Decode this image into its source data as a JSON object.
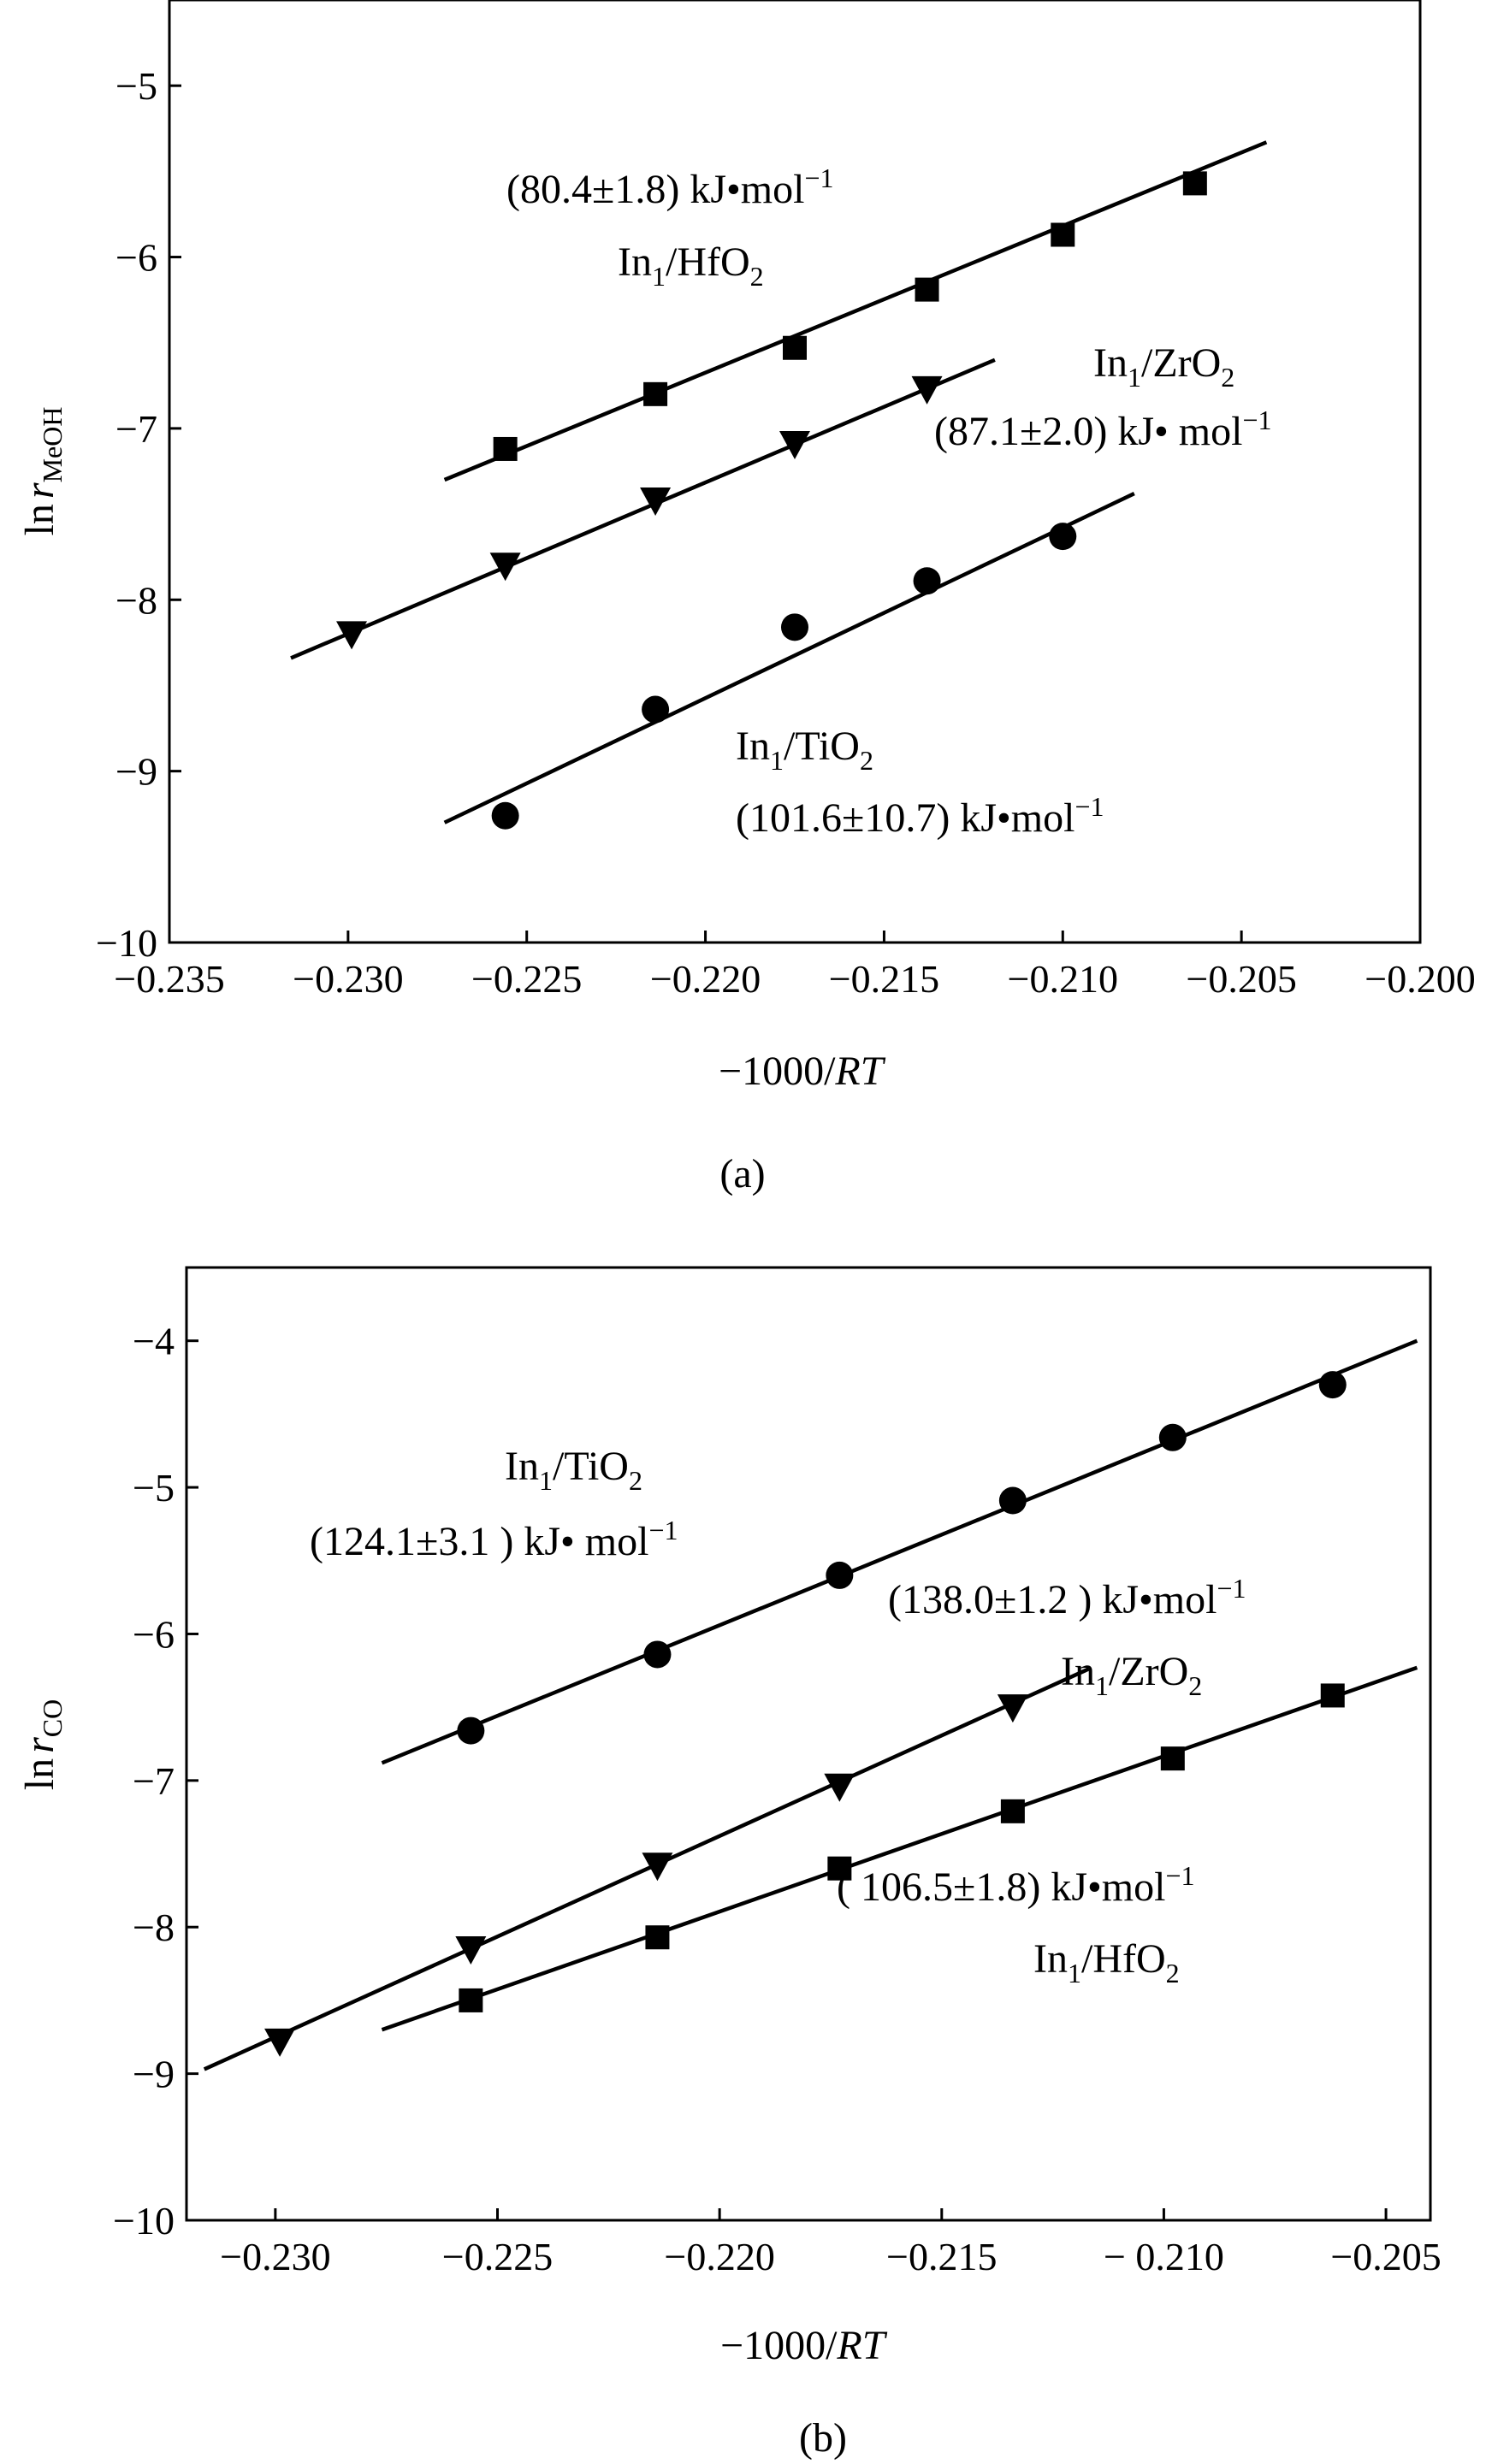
{
  "chart_data": [
    {
      "panel": "(a)",
      "type": "scatter",
      "xlabel": "−1000/RT",
      "ylabel": "ln r",
      "ylabel_subscript": "MeOH",
      "xlim": [
        -0.235,
        -0.2
      ],
      "ylim": [
        -10,
        -4.5
      ],
      "xticks": [
        -0.235,
        -0.23,
        -0.225,
        -0.22,
        -0.215,
        -0.21,
        -0.205,
        -0.2
      ],
      "xtick_labels": [
        "−0.235",
        "−0.230",
        "−0.225",
        "−0.220",
        "−0.215",
        "−0.210",
        "−0.205",
        "−0.200"
      ],
      "yticks": [
        -10,
        -9,
        -8,
        -7,
        -6,
        -5
      ],
      "ytick_labels": [
        "−10",
        "−9",
        "−8",
        "−7",
        "−6",
        "−5"
      ],
      "grid": false,
      "series": [
        {
          "name": "In1/HfO2",
          "marker": "square",
          "x": [
            -0.2256,
            -0.2214,
            -0.2175,
            -0.2138,
            -0.21,
            -0.2063
          ],
          "y": [
            -7.12,
            -6.8,
            -6.53,
            -6.19,
            -5.87,
            -5.57
          ],
          "fit": {
            "x": [
              -0.2273,
              -0.2043
            ],
            "y": [
              -7.3,
              -5.33
            ]
          },
          "annotation": [
            "In1/HfO2",
            "(80.4±1.8) kJ•mol−1"
          ]
        },
        {
          "name": "In1/ZrO2",
          "marker": "triangle-down",
          "x": [
            -0.2299,
            -0.2256,
            -0.2214,
            -0.2175,
            -0.2138
          ],
          "y": [
            -8.2,
            -7.8,
            -7.42,
            -7.09,
            -6.77
          ],
          "fit": {
            "x": [
              -0.2316,
              -0.2119
            ],
            "y": [
              -8.34,
              -6.6
            ]
          },
          "annotation": [
            "In1/ZrO2",
            "(87.1±2.0) kJ•mol−1"
          ]
        },
        {
          "name": "In1/TiO2",
          "marker": "circle",
          "x": [
            -0.2256,
            -0.2214,
            -0.2175,
            -0.2138,
            -0.21
          ],
          "y": [
            -9.26,
            -8.64,
            -8.16,
            -7.89,
            -7.63
          ],
          "fit": {
            "x": [
              -0.2273,
              -0.208
            ],
            "y": [
              -9.3,
              -7.38
            ]
          },
          "annotation": [
            "In1/TiO2",
            "(101.6±10.7) kJ•mol−1"
          ]
        }
      ],
      "caption": "(a)"
    },
    {
      "panel": "(b)",
      "type": "scatter",
      "xlabel": "−1000/RT",
      "ylabel": "ln r",
      "ylabel_subscript": "CO",
      "xlim": [
        -0.232,
        -0.204
      ],
      "ylim": [
        -10,
        -3.5
      ],
      "xticks": [
        -0.23,
        -0.225,
        -0.22,
        -0.215,
        -0.21,
        -0.205
      ],
      "xtick_labels": [
        "−0.230",
        "−0.225",
        "−0.220",
        "−0.215",
        "− 0.210",
        "−0.205"
      ],
      "yticks": [
        -10,
        -9,
        -8,
        -7,
        -6,
        -5,
        -4
      ],
      "ytick_labels": [
        "−10",
        "−9",
        "−8",
        "−7",
        "−6",
        "−5",
        "−4"
      ],
      "grid": false,
      "series": [
        {
          "name": "In1/TiO2",
          "marker": "circle",
          "x": [
            -0.2256,
            -0.2214,
            -0.2173,
            -0.2134,
            -0.2098,
            -0.2062
          ],
          "y": [
            -6.66,
            -6.14,
            -5.6,
            -5.09,
            -4.66,
            -4.3
          ],
          "fit": {
            "x": [
              -0.2276,
              -0.2043
            ],
            "y": [
              -6.88,
              -4.0
            ]
          },
          "annotation": [
            "In1/TiO2",
            "(124.1±3.1 ) kJ• mol−1"
          ]
        },
        {
          "name": "In1/ZrO2",
          "marker": "triangle-down",
          "x": [
            -0.2299,
            -0.2256,
            -0.2214,
            -0.2173,
            -0.2134
          ],
          "y": [
            -8.78,
            -8.15,
            -7.58,
            -7.04,
            -6.5
          ],
          "fit": {
            "x": [
              -0.2316,
              -0.2117
            ],
            "y": [
              -8.97,
              -6.24
            ]
          },
          "annotation": [
            "In1/ZrO2",
            "(138.0±1.2 ) kJ•mol−1"
          ]
        },
        {
          "name": "In1/HfO2",
          "marker": "square",
          "x": [
            -0.2256,
            -0.2214,
            -0.2173,
            -0.2134,
            -0.2098,
            -0.2062
          ],
          "y": [
            -8.5,
            -8.07,
            -7.6,
            -7.21,
            -6.85,
            -6.42
          ],
          "fit": {
            "x": [
              -0.2276,
              -0.2043
            ],
            "y": [
              -8.7,
              -6.23
            ]
          },
          "annotation": [
            "In1/HfO2",
            "( 106.5±1.8) kJ•mol−1"
          ]
        }
      ],
      "caption": "(b)"
    }
  ],
  "annotations_a": {
    "hf_name_main": "In",
    "hf_name_sub": "1",
    "hf_name_rest": "/HfO",
    "hf_name_sub2": "2",
    "hf_energy": "(80.4±1.8) kJ•mol",
    "hf_energy_sup": "−1",
    "zr_name_main": "In",
    "zr_name_sub": "1",
    "zr_name_rest": "/ZrO",
    "zr_name_sub2": "2",
    "zr_energy": "(87.1±2.0) kJ• mol",
    "zr_energy_sup": "−1",
    "ti_name_main": "In",
    "ti_name_sub": "1",
    "ti_name_rest": "/TiO",
    "ti_name_sub2": "2",
    "ti_energy": "(101.6±10.7) kJ•mol",
    "ti_energy_sup": "−1"
  },
  "annotations_b": {
    "ti_name_main": "In",
    "ti_name_sub": "1",
    "ti_name_rest": "/TiO",
    "ti_name_sub2": "2",
    "ti_energy": "(124.1±3.1 ) kJ• mol",
    "ti_energy_sup": "−1",
    "zr_name_main": "In",
    "zr_name_sub": "1",
    "zr_name_rest": "/ZrO",
    "zr_name_sub2": "2",
    "zr_energy": "(138.0±1.2 ) kJ•mol",
    "zr_energy_sup": "−1",
    "hf_name_main": "In",
    "hf_name_sub": "1",
    "hf_name_rest": "/HfO",
    "hf_name_sub2": "2",
    "hf_energy": "( 106.5±1.8) kJ•mol",
    "hf_energy_sup": "−1"
  },
  "axis_text": {
    "a_xlabel_main": "−1000/",
    "a_xlabel_italic": "RT",
    "a_ylabel_ln": "ln",
    "a_ylabel_r": "r",
    "a_ylabel_sub": "MeOH",
    "b_xlabel_main": "−1000/",
    "b_xlabel_italic": "RT",
    "b_ylabel_ln": "ln",
    "b_ylabel_r": "r",
    "b_ylabel_sub": "CO"
  },
  "colors": {
    "ink": "#000000",
    "background": "#ffffff"
  }
}
